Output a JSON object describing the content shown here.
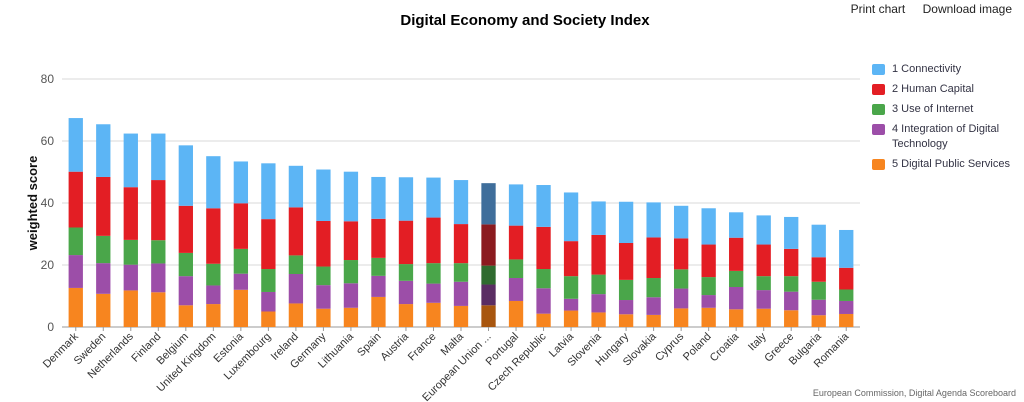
{
  "toolbar": {
    "print_label": "Print chart",
    "download_label": "Download image"
  },
  "credits": "European Commission, Digital Agenda Scoreboard",
  "chart_data": {
    "type": "bar",
    "stacked": true,
    "title": "Digital Economy and Society Index",
    "xlabel": "",
    "ylabel": "weighted score",
    "ylim": [
      0,
      80
    ],
    "yticks": [
      0,
      20,
      40,
      60,
      80
    ],
    "grid": true,
    "legend_position": "right",
    "highlight_category": "European Union ...",
    "categories": [
      "Denmark",
      "Sweden",
      "Netherlands",
      "Finland",
      "Belgium",
      "United Kingdom",
      "Estonia",
      "Luxembourg",
      "Ireland",
      "Germany",
      "Lithuania",
      "Spain",
      "Austria",
      "France",
      "Malta",
      "European Union ...",
      "Portugal",
      "Czech Republic",
      "Latvia",
      "Slovenia",
      "Hungary",
      "Slovakia",
      "Cyprus",
      "Poland",
      "Croatia",
      "Italy",
      "Greece",
      "Bulgaria",
      "Romania"
    ],
    "series": [
      {
        "name": "1 Connectivity",
        "color": "#5cb5f5",
        "highlight_color": "#3f6e9b",
        "values": [
          17.3,
          17.0,
          17.3,
          15.0,
          19.5,
          16.8,
          13.5,
          18.0,
          13.4,
          16.6,
          16.0,
          13.5,
          14.0,
          12.9,
          14.2,
          13.3,
          13.3,
          13.5,
          15.7,
          10.8,
          13.3,
          11.3,
          10.5,
          11.7,
          8.2,
          9.4,
          10.3,
          10.5,
          12.2
        ]
      },
      {
        "name": "2 Human Capital",
        "color": "#e31e24",
        "highlight_color": "#8b1a1f",
        "values": [
          18.0,
          19.0,
          17.0,
          19.4,
          15.2,
          17.9,
          14.7,
          16.1,
          15.5,
          14.7,
          12.5,
          12.6,
          14.0,
          14.7,
          12.6,
          13.3,
          10.9,
          13.6,
          11.3,
          12.8,
          11.9,
          13.1,
          10.0,
          10.5,
          10.7,
          10.2,
          8.8,
          7.9,
          7.0
        ]
      },
      {
        "name": "3 Use of Internet",
        "color": "#4aa64a",
        "highlight_color": "#2f6b2f",
        "values": [
          8.9,
          8.8,
          8.0,
          7.5,
          7.5,
          7.0,
          8.0,
          7.4,
          6.0,
          6.0,
          7.5,
          5.8,
          5.4,
          6.6,
          6.0,
          6.1,
          6.0,
          6.2,
          7.3,
          6.3,
          6.5,
          6.2,
          6.2,
          5.8,
          5.2,
          4.5,
          5.0,
          5.8,
          3.7
        ]
      },
      {
        "name": "4 Integration of Digital Technology",
        "color": "#9c4ea8",
        "highlight_color": "#5a2d63",
        "values": [
          10.6,
          9.9,
          8.3,
          9.3,
          9.4,
          6.0,
          5.2,
          6.3,
          9.5,
          7.6,
          7.9,
          6.8,
          7.5,
          6.2,
          7.8,
          6.7,
          7.4,
          8.2,
          3.8,
          5.9,
          4.6,
          5.7,
          6.4,
          4.1,
          7.2,
          6.0,
          6.0,
          5.0,
          4.2
        ]
      },
      {
        "name": "5 Digital Public Services",
        "color": "#f7851f",
        "highlight_color": "#a8560f",
        "values": [
          12.6,
          10.7,
          11.8,
          11.2,
          7.0,
          7.4,
          12.0,
          5.0,
          7.6,
          5.9,
          6.2,
          9.7,
          7.4,
          7.8,
          6.8,
          7.0,
          8.4,
          4.3,
          5.3,
          4.7,
          4.1,
          3.9,
          6.0,
          6.2,
          5.7,
          5.9,
          5.4,
          3.8,
          4.2
        ]
      }
    ]
  }
}
